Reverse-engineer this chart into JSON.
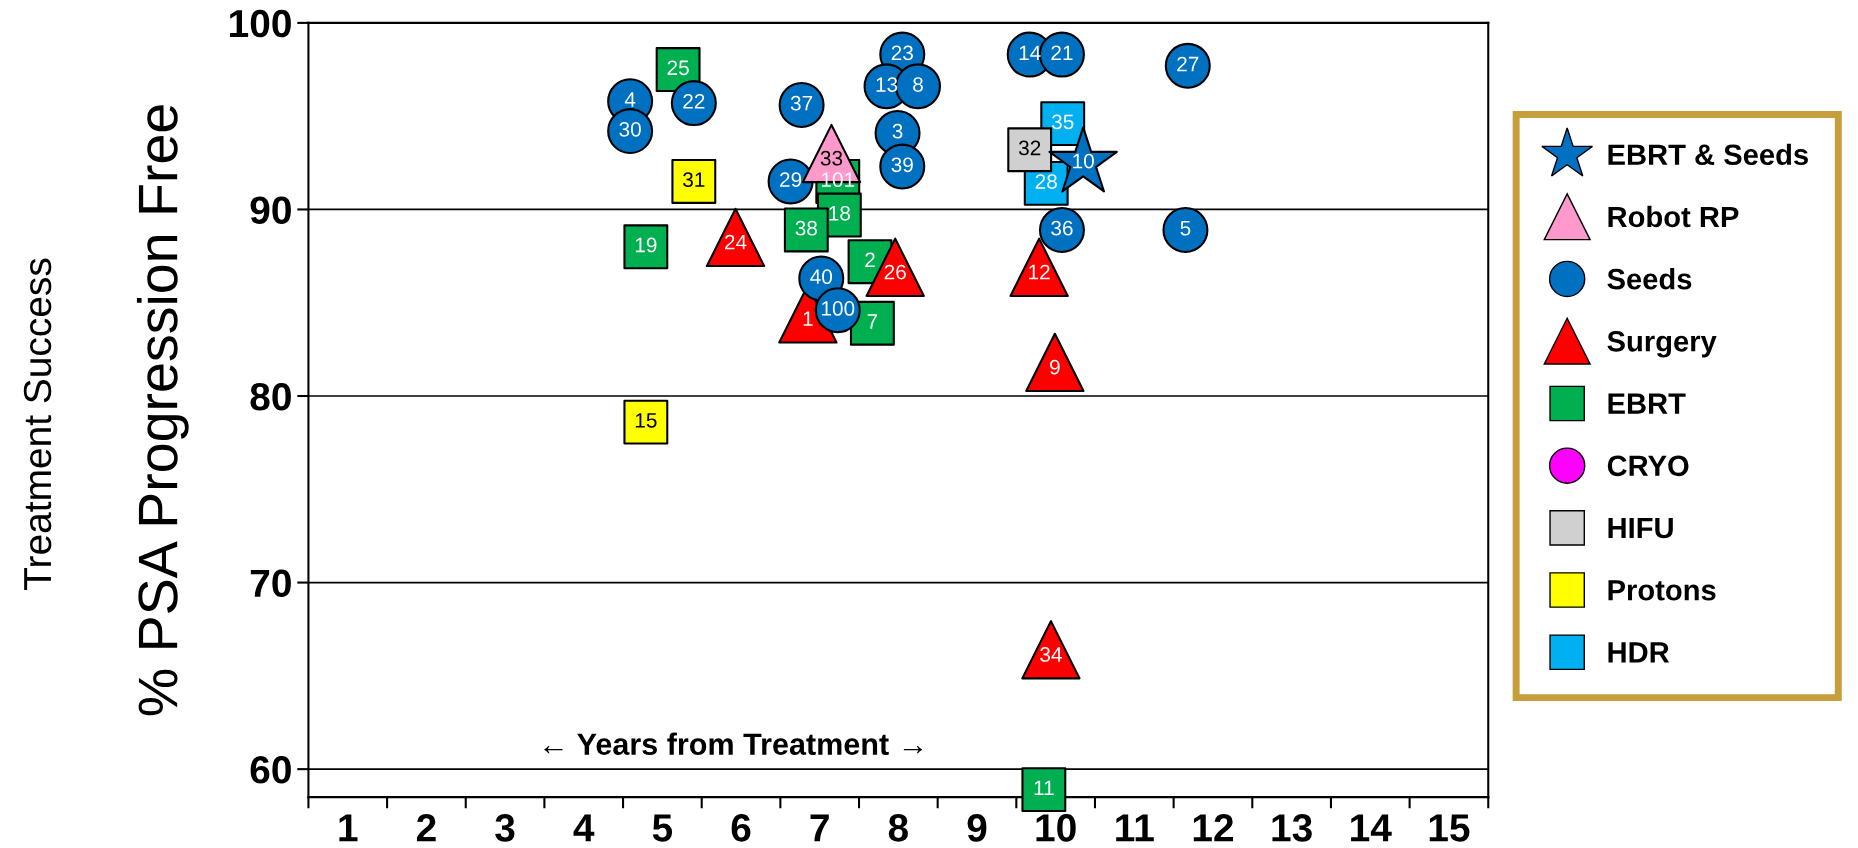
{
  "chart_data": {
    "type": "scatter",
    "xlabel": "← Years from Treatment →",
    "ylabel": "% PSA Progression Free",
    "annotations": [
      "Treatment Success",
      {
        "text": "10",
        "x": 10.35,
        "y": 92.5
      },
      {
        "text": "33",
        "x": 7.15,
        "y": 93.0
      },
      {
        "text": "4",
        "x": 4.59,
        "y": 95.8
      },
      {
        "text": "30",
        "x": 4.59,
        "y": 94.2
      },
      {
        "text": "22",
        "x": 5.4,
        "y": 95.7
      },
      {
        "text": "37",
        "x": 6.77,
        "y": 95.6
      },
      {
        "text": "23",
        "x": 8.05,
        "y": 98.3
      },
      {
        "text": "13",
        "x": 7.85,
        "y": 96.6
      },
      {
        "text": "8",
        "x": 8.25,
        "y": 96.6
      },
      {
        "text": "3",
        "x": 7.99,
        "y": 94.1
      },
      {
        "text": "39",
        "x": 8.05,
        "y": 92.3
      },
      {
        "text": "29",
        "x": 6.63,
        "y": 91.5
      },
      {
        "text": "40",
        "x": 7.02,
        "y": 86.3
      },
      {
        "text": "100",
        "x": 7.23,
        "y": 84.6
      },
      {
        "text": "14",
        "x": 9.67,
        "y": 98.3
      },
      {
        "text": "21",
        "x": 10.08,
        "y": 98.3
      },
      {
        "text": "27",
        "x": 11.68,
        "y": 97.7
      },
      {
        "text": "36",
        "x": 10.08,
        "y": 88.9
      },
      {
        "text": "5",
        "x": 11.65,
        "y": 88.9
      },
      {
        "text": "24",
        "x": 5.93,
        "y": 88.5
      },
      {
        "text": "26",
        "x": 7.96,
        "y": 86.9
      },
      {
        "text": "1",
        "x": 6.85,
        "y": 84.4
      },
      {
        "text": "12",
        "x": 9.79,
        "y": 86.9
      },
      {
        "text": "9",
        "x": 9.99,
        "y": 81.8
      },
      {
        "text": "34",
        "x": 9.94,
        "y": 66.4
      },
      {
        "text": "25",
        "x": 5.2,
        "y": 97.5
      },
      {
        "text": "101",
        "x": 7.23,
        "y": 91.5
      },
      {
        "text": "18",
        "x": 7.25,
        "y": 89.7
      },
      {
        "text": "38",
        "x": 6.83,
        "y": 88.9
      },
      {
        "text": "19",
        "x": 4.79,
        "y": 88.0
      },
      {
        "text": "2",
        "x": 7.64,
        "y": 87.2
      },
      {
        "text": "7",
        "x": 7.67,
        "y": 83.9
      },
      {
        "text": "11",
        "x": 9.85,
        "y": 58.9
      },
      {
        "text": "32",
        "x": 9.67,
        "y": 93.2
      },
      {
        "text": "31",
        "x": 5.4,
        "y": 91.5
      },
      {
        "text": "15",
        "x": 4.79,
        "y": 78.6
      },
      {
        "text": "35",
        "x": 10.09,
        "y": 94.6
      },
      {
        "text": "28",
        "x": 9.88,
        "y": 91.4
      }
    ],
    "xlim": [
      0.5,
      15.5
    ],
    "xticks": [
      {
        "value": 0.5,
        "label": null
      },
      {
        "value": 1.5,
        "label": null
      },
      {
        "value": 2.5,
        "label": null
      },
      {
        "value": 3.5,
        "label": null
      },
      {
        "value": 4.5,
        "label": null
      },
      {
        "value": 5.5,
        "label": null
      },
      {
        "value": 6.5,
        "label": null
      },
      {
        "value": 7.5,
        "label": null
      },
      {
        "value": 8.5,
        "label": null
      },
      {
        "value": 9.5,
        "label": null
      },
      {
        "value": 10.5,
        "label": null
      },
      {
        "value": 11.5,
        "label": null
      },
      {
        "value": 12.5,
        "label": null
      },
      {
        "value": 13.5,
        "label": null
      },
      {
        "value": 14.5,
        "label": null
      },
      {
        "value": 15.5,
        "label": null
      },
      1,
      2,
      3,
      4,
      5,
      6,
      7,
      8,
      9,
      10,
      11,
      12,
      13,
      14,
      15
    ],
    "ylim": [
      58.5,
      100
    ],
    "yticks": [
      60,
      70,
      80,
      90,
      100
    ],
    "grid": "y",
    "legend": "right",
    "series": [
      {
        "name": "EBRT & Seeds",
        "color": "#0070c0",
        "marker": "star",
        "x": [
          10.35
        ],
        "values": [
          92.5
        ]
      },
      {
        "name": "Robot RP",
        "color": "#ff99cc",
        "marker": "triangle",
        "x": [
          7.15
        ],
        "values": [
          93.0
        ]
      },
      {
        "name": "Seeds",
        "color": "#0070c0",
        "marker": "circle",
        "x": [
          4.59,
          4.59,
          5.4,
          6.77,
          8.05,
          7.85,
          8.25,
          7.99,
          8.05,
          6.63,
          7.02,
          7.23,
          9.67,
          10.08,
          11.68,
          10.08,
          11.65
        ],
        "values": [
          95.8,
          94.2,
          95.7,
          95.6,
          98.3,
          96.6,
          96.6,
          94.1,
          92.3,
          91.5,
          86.3,
          84.6,
          98.3,
          98.3,
          97.7,
          88.9,
          88.9
        ]
      },
      {
        "name": "Surgery",
        "color": "#ff0000",
        "marker": "triangle",
        "x": [
          5.93,
          7.96,
          6.85,
          9.79,
          9.99,
          9.94
        ],
        "values": [
          88.5,
          86.9,
          84.4,
          86.9,
          81.8,
          66.4
        ]
      },
      {
        "name": "EBRT",
        "color": "#00b050",
        "marker": "square",
        "x": [
          5.2,
          7.23,
          7.25,
          6.83,
          4.79,
          7.64,
          7.67,
          9.85
        ],
        "values": [
          97.5,
          91.5,
          89.7,
          88.9,
          88.0,
          87.2,
          83.9,
          58.9
        ]
      },
      {
        "name": "CRYO",
        "color": "#ff00ff",
        "marker": "circle"
      },
      {
        "name": "HIFU",
        "color": "#d0d0d0",
        "marker": "square",
        "x": [
          9.67
        ],
        "values": [
          93.2
        ]
      },
      {
        "name": "Protons",
        "color": "#ffff00",
        "marker": "square",
        "x": [
          5.4,
          4.79
        ],
        "values": [
          91.5,
          78.6
        ]
      },
      {
        "name": "HDR",
        "color": "#00b0f0",
        "marker": "square",
        "x": [
          10.09,
          9.88
        ],
        "values": [
          94.6,
          91.4
        ]
      }
    ]
  }
}
